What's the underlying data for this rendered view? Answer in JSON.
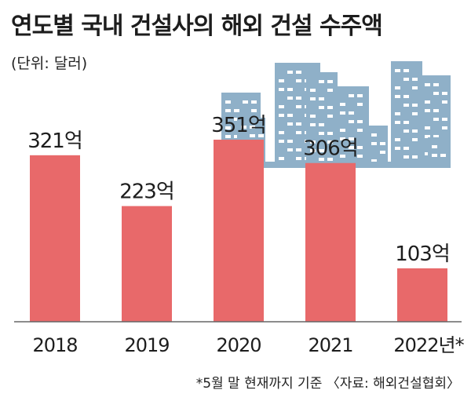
{
  "header": {
    "title": "연도별 국내 건설사의 해외 건설 수주액",
    "unit": "(단위: 달러)"
  },
  "footer": {
    "note": "*5월 말 현재까지 기준 〈자료: 해외건설협회〉"
  },
  "colors": {
    "bar": "#e8696a",
    "axis": "#666666",
    "building": "#8fb0c8",
    "window": "#ffffff"
  },
  "decoration": "city-buildings-icon",
  "chart_data": {
    "type": "bar",
    "categories": [
      "2018",
      "2019",
      "2020",
      "2021",
      "2022년*"
    ],
    "values": [
      321,
      223,
      351,
      306,
      103
    ],
    "value_labels": [
      "321억",
      "223억",
      "351억",
      "306억",
      "103억"
    ],
    "ylim": [
      0,
      351
    ],
    "grid": false,
    "legend": "none"
  }
}
